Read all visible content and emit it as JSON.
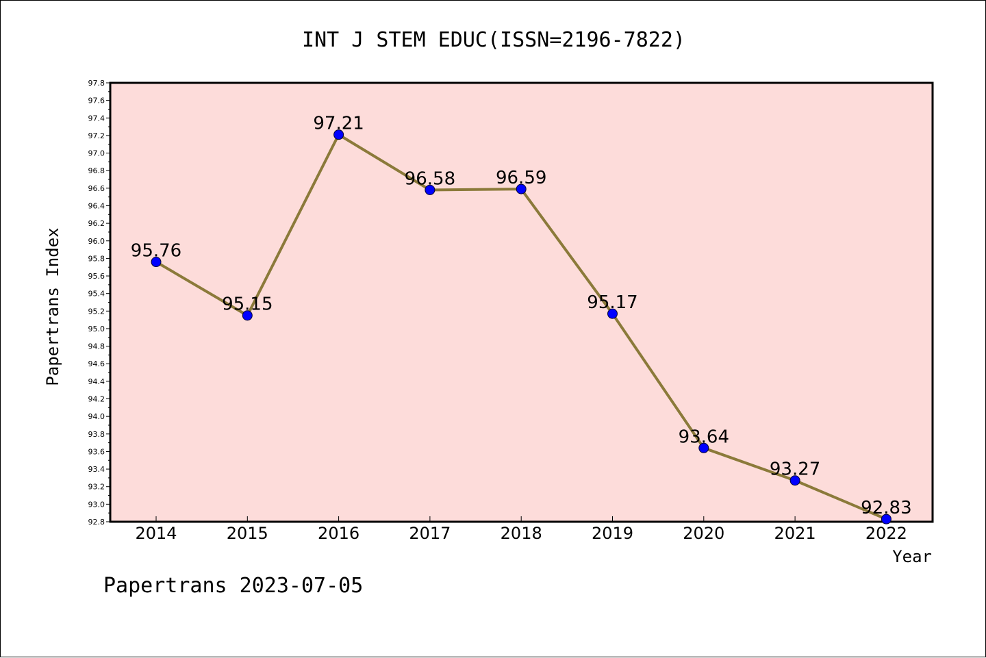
{
  "chart_data": {
    "type": "line",
    "title": "INT J STEM EDUC(ISSN=2196-7822)",
    "xlabel": "Year",
    "ylabel": "Papertrans Index",
    "categories": [
      "2014",
      "2015",
      "2016",
      "2017",
      "2018",
      "2019",
      "2020",
      "2021",
      "2022"
    ],
    "series": [
      {
        "values": [
          95.76,
          95.15,
          97.21,
          96.58,
          96.59,
          95.17,
          93.64,
          93.27,
          92.83
        ],
        "labels": [
          "95.76",
          "95.15",
          "97.21",
          "96.58",
          "96.59",
          "95.17",
          "93.64",
          "93.27",
          "92.83"
        ]
      }
    ],
    "ylim": [
      92.8,
      97.8
    ],
    "yticks": [
      "92.8",
      "93.0",
      "93.2",
      "93.4",
      "93.6",
      "93.8",
      "94.0",
      "94.2",
      "94.4",
      "94.6",
      "94.8",
      "95.0",
      "95.2",
      "95.4",
      "95.6",
      "95.8",
      "96.0",
      "96.2",
      "96.4",
      "96.6",
      "96.8",
      "97.0",
      "97.2",
      "97.4",
      "97.6",
      "97.8"
    ],
    "grid": false,
    "legend": "none",
    "colors": {
      "plot_background": "#fddcda",
      "line": "#8b7a3a",
      "marker": "#0000ff"
    }
  },
  "footer": "Papertrans 2023-07-05"
}
